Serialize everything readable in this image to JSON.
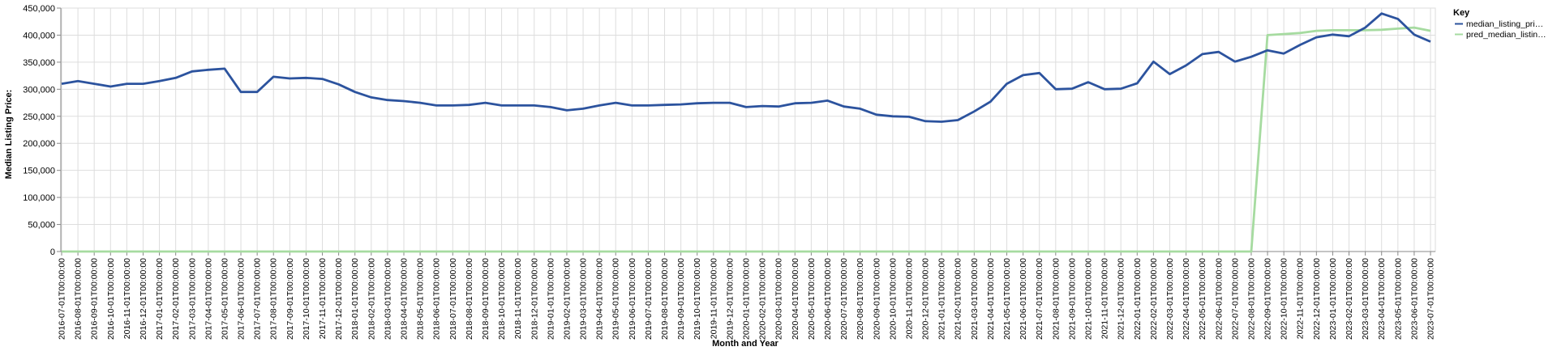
{
  "chart_data": {
    "type": "line",
    "xlabel": "Month and Year",
    "ylabel": "Median Listing Price:",
    "ylim": [
      0,
      450000
    ],
    "y_ticks": [
      "0",
      "50,000",
      "100,000",
      "150,000",
      "200,000",
      "250,000",
      "300,000",
      "350,000",
      "400,000",
      "450,000"
    ],
    "y_tick_values": [
      0,
      50000,
      100000,
      150000,
      200000,
      250000,
      300000,
      350000,
      400000,
      450000
    ],
    "grid": true,
    "legend": {
      "title": "Key",
      "placement": "right"
    },
    "x": [
      "2016-07-01T00:00:00",
      "2016-08-01T00:00:00",
      "2016-09-01T00:00:00",
      "2016-10-01T00:00:00",
      "2016-11-01T00:00:00",
      "2016-12-01T00:00:00",
      "2017-01-01T00:00:00",
      "2017-02-01T00:00:00",
      "2017-03-01T00:00:00",
      "2017-04-01T00:00:00",
      "2017-05-01T00:00:00",
      "2017-06-01T00:00:00",
      "2017-07-01T00:00:00",
      "2017-08-01T00:00:00",
      "2017-09-01T00:00:00",
      "2017-10-01T00:00:00",
      "2017-11-01T00:00:00",
      "2017-12-01T00:00:00",
      "2018-01-01T00:00:00",
      "2018-02-01T00:00:00",
      "2018-03-01T00:00:00",
      "2018-04-01T00:00:00",
      "2018-05-01T00:00:00",
      "2018-06-01T00:00:00",
      "2018-07-01T00:00:00",
      "2018-08-01T00:00:00",
      "2018-09-01T00:00:00",
      "2018-10-01T00:00:00",
      "2018-11-01T00:00:00",
      "2018-12-01T00:00:00",
      "2019-01-01T00:00:00",
      "2019-02-01T00:00:00",
      "2019-03-01T00:00:00",
      "2019-04-01T00:00:00",
      "2019-05-01T00:00:00",
      "2019-06-01T00:00:00",
      "2019-07-01T00:00:00",
      "2019-08-01T00:00:00",
      "2019-09-01T00:00:00",
      "2019-10-01T00:00:00",
      "2019-11-01T00:00:00",
      "2019-12-01T00:00:00",
      "2020-01-01T00:00:00",
      "2020-02-01T00:00:00",
      "2020-03-01T00:00:00",
      "2020-04-01T00:00:00",
      "2020-05-01T00:00:00",
      "2020-06-01T00:00:00",
      "2020-07-01T00:00:00",
      "2020-08-01T00:00:00",
      "2020-09-01T00:00:00",
      "2020-10-01T00:00:00",
      "2020-11-01T00:00:00",
      "2020-12-01T00:00:00",
      "2021-01-01T00:00:00",
      "2021-02-01T00:00:00",
      "2021-03-01T00:00:00",
      "2021-04-01T00:00:00",
      "2021-05-01T00:00:00",
      "2021-06-01T00:00:00",
      "2021-07-01T00:00:00",
      "2021-08-01T00:00:00",
      "2021-09-01T00:00:00",
      "2021-10-01T00:00:00",
      "2021-11-01T00:00:00",
      "2021-12-01T00:00:00",
      "2022-01-01T00:00:00",
      "2022-02-01T00:00:00",
      "2022-03-01T00:00:00",
      "2022-04-01T00:00:00",
      "2022-05-01T00:00:00",
      "2022-06-01T00:00:00",
      "2022-07-01T00:00:00",
      "2022-08-01T00:00:00",
      "2022-09-01T00:00:00",
      "2022-10-01T00:00:00",
      "2022-11-01T00:00:00",
      "2022-12-01T00:00:00",
      "2023-01-01T00:00:00",
      "2023-02-01T00:00:00",
      "2023-03-01T00:00:00",
      "2023-04-01T00:00:00",
      "2023-05-01T00:00:00",
      "2023-06-01T00:00:00",
      "2023-07-01T00:00:00"
    ],
    "series": [
      {
        "name": "median_listing_pri…",
        "color": "#2c539e",
        "values": [
          310000,
          315000,
          310000,
          305000,
          310000,
          310000,
          315000,
          321000,
          333000,
          336000,
          338000,
          295000,
          295000,
          323000,
          320000,
          321000,
          319000,
          309000,
          295000,
          285000,
          280000,
          278000,
          275000,
          270000,
          270000,
          271000,
          275000,
          270000,
          270000,
          270000,
          267000,
          261000,
          264000,
          270000,
          275000,
          270000,
          270000,
          271000,
          272000,
          274000,
          275000,
          275000,
          267000,
          269000,
          268000,
          274000,
          275000,
          279000,
          268000,
          264000,
          253000,
          250000,
          249000,
          241000,
          240000,
          243000,
          259000,
          277000,
          310000,
          326000,
          330000,
          300000,
          301000,
          313000,
          300000,
          301000,
          311000,
          351000,
          328000,
          344000,
          365000,
          369000,
          351000,
          360000,
          372000,
          366000,
          382000,
          396000,
          401000,
          398000,
          414000,
          440000,
          430000,
          401000,
          388000
        ]
      },
      {
        "name": "pred_median_listin…",
        "color": "#a6dba0",
        "values": [
          0,
          0,
          0,
          0,
          0,
          0,
          0,
          0,
          0,
          0,
          0,
          0,
          0,
          0,
          0,
          0,
          0,
          0,
          0,
          0,
          0,
          0,
          0,
          0,
          0,
          0,
          0,
          0,
          0,
          0,
          0,
          0,
          0,
          0,
          0,
          0,
          0,
          0,
          0,
          0,
          0,
          0,
          0,
          0,
          0,
          0,
          0,
          0,
          0,
          0,
          0,
          0,
          0,
          0,
          0,
          0,
          0,
          0,
          0,
          0,
          0,
          0,
          0,
          0,
          0,
          0,
          0,
          0,
          0,
          0,
          0,
          0,
          0,
          0,
          400000,
          402000,
          404000,
          408000,
          409000,
          409000,
          409000,
          410000,
          412000,
          414000,
          408000
        ]
      }
    ]
  }
}
